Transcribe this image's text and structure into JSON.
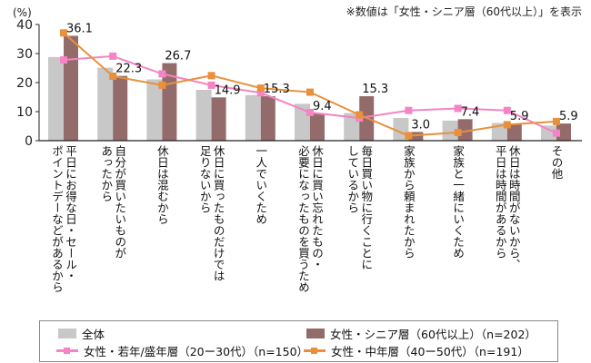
{
  "chart_data": {
    "type": "bar+line",
    "note": "※数値は「女性・シニア層（60代以上）」を表示",
    "ylabel": "(%)",
    "ylim": [
      0,
      40
    ],
    "yticks": [
      0,
      10,
      20,
      30,
      40
    ],
    "grid": false,
    "legend_position": "bottom",
    "categories": [
      "平日にお得な日・セール・\nポイントデーなどがあるから",
      "自分が買いたいものが\nあったから",
      "休日は混むから",
      "休日に買ったものだけでは\n足りないから",
      "一人でいくため",
      "休日に買い忘れたもの・\n必要になったものを買うため",
      "毎日買い物に行くことに\nしているから",
      "家族から頼まれたから",
      "家族と一緒にいくため",
      "休日は時間がないから、\n平日は時間があるから",
      "その他"
    ],
    "series": [
      {
        "name": "全体",
        "type": "bar",
        "color": "#c8c8c8",
        "values": [
          28.8,
          25.1,
          21.1,
          17.5,
          15.7,
          12.7,
          9.5,
          7.8,
          6.9,
          6.1,
          5.2
        ]
      },
      {
        "name": "女性・シニア層（60代以上）（n=202）",
        "type": "bar",
        "color": "#946b6b",
        "values": [
          36.1,
          22.3,
          26.7,
          14.9,
          15.3,
          9.4,
          15.3,
          3.0,
          7.4,
          5.9,
          5.9
        ],
        "data_labels": [
          "36.1",
          "22.3",
          "26.7",
          "14.9",
          "15.3",
          "9.4",
          "15.3",
          "3.0",
          "7.4",
          "5.9",
          "5.9"
        ]
      },
      {
        "name": "女性・若年/盛年層（20ー30代）（n=150）",
        "type": "line",
        "color": "#f484c4",
        "values": [
          27.8,
          29.1,
          23.0,
          19.1,
          16.5,
          9.7,
          7.8,
          10.4,
          11.1,
          10.4,
          2.6
        ]
      },
      {
        "name": "女性・中年層（40ー50代）（n=191）",
        "type": "line",
        "color": "#e8903c",
        "values": [
          37.1,
          22.2,
          19.1,
          22.4,
          18.1,
          16.7,
          8.9,
          1.7,
          2.8,
          5.5,
          6.6
        ]
      }
    ]
  }
}
